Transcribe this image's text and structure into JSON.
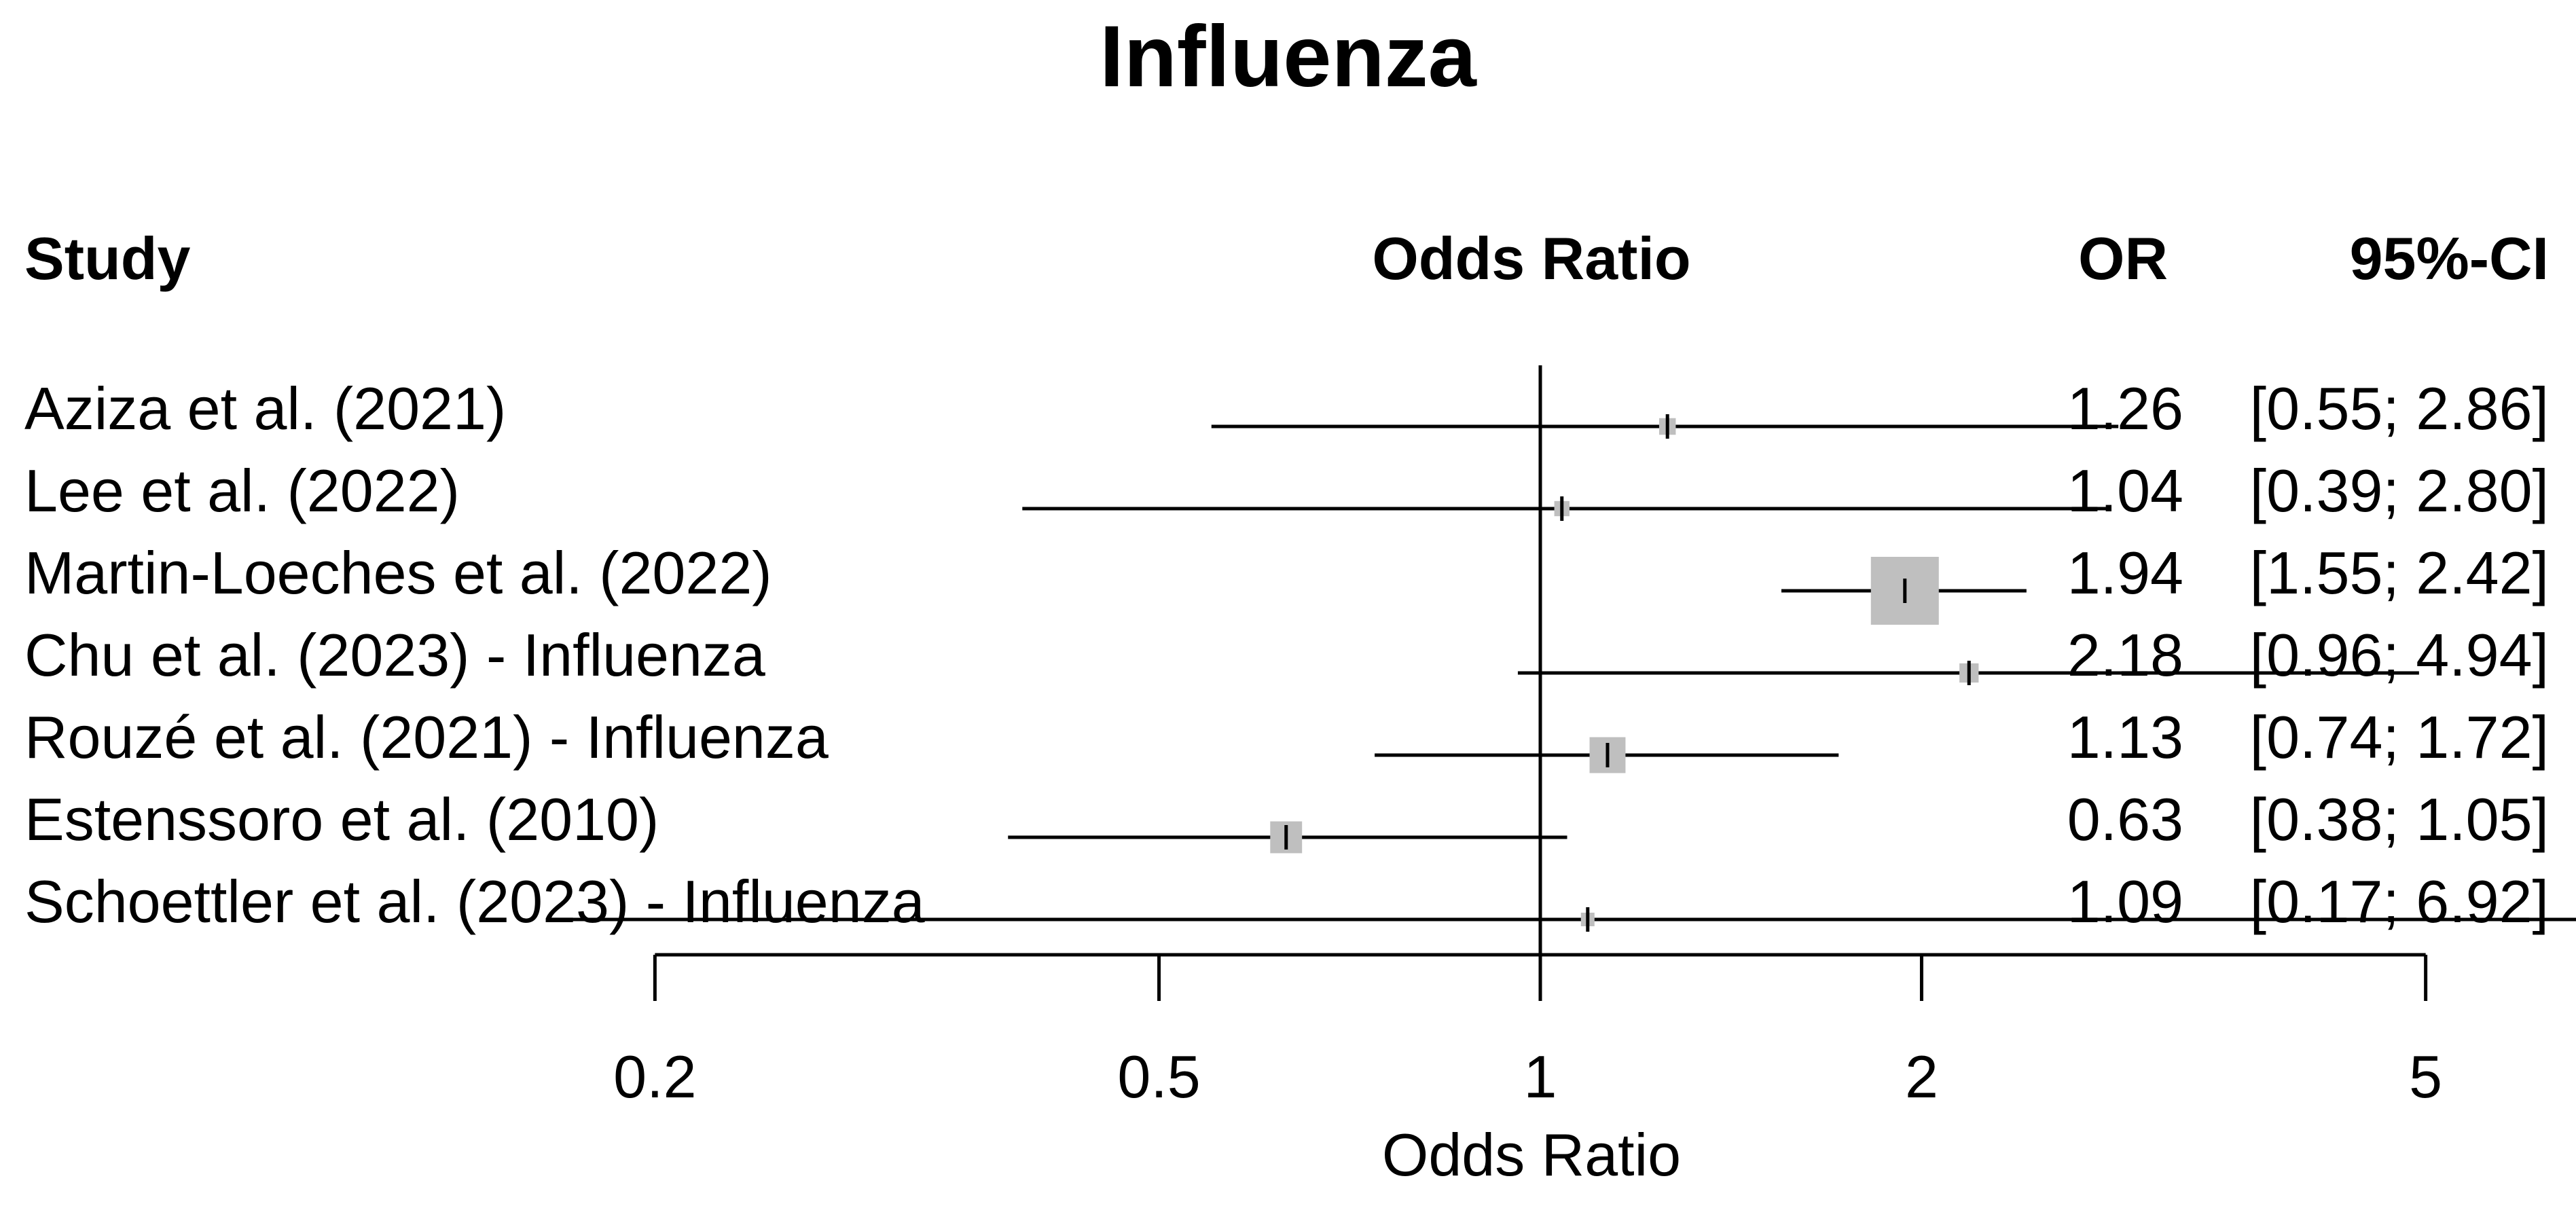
{
  "chart_data": {
    "type": "forest",
    "title": "Influenza",
    "column_headers": {
      "study": "Study",
      "plot": "Odds Ratio",
      "estimate": "OR",
      "ci": "95%-CI"
    },
    "xlabel": "Odds Ratio",
    "x_scale": "log",
    "xlim": [
      0.2,
      5
    ],
    "x_ticks": [
      {
        "value": 0.2,
        "label": "0.2"
      },
      {
        "value": 0.5,
        "label": "0.5"
      },
      {
        "value": 1,
        "label": "1"
      },
      {
        "value": 2,
        "label": "2"
      },
      {
        "value": 5,
        "label": "5"
      }
    ],
    "reference_line": 1,
    "studies": [
      {
        "study": "Aziza et al. (2021)",
        "or": 1.26,
        "lower": 0.55,
        "upper": 2.86,
        "or_text": "1.26",
        "ci_text": "[0.55; 2.86]",
        "weight": 0.6
      },
      {
        "study": "Lee et al. (2022)",
        "or": 1.04,
        "lower": 0.39,
        "upper": 2.8,
        "or_text": "1.04",
        "ci_text": "[0.39; 2.80]",
        "weight": 0.5
      },
      {
        "study": "Martin-Loeches et al. (2022)",
        "or": 1.94,
        "lower": 1.55,
        "upper": 2.42,
        "or_text": "1.94",
        "ci_text": "[1.55; 2.42]",
        "weight": 10
      },
      {
        "study": "Chu et al. (2023) - Influenza",
        "or": 2.18,
        "lower": 0.96,
        "upper": 4.94,
        "or_text": "2.18",
        "ci_text": "[0.96; 4.94]",
        "weight": 0.8
      },
      {
        "study": "Rouzé et al. (2021) - Influenza",
        "or": 1.13,
        "lower": 0.74,
        "upper": 1.72,
        "or_text": "1.13",
        "ci_text": "[0.74; 1.72]",
        "weight": 2.8
      },
      {
        "study": "Estenssoro et al. (2010)",
        "or": 0.63,
        "lower": 0.38,
        "upper": 1.05,
        "or_text": "0.63",
        "ci_text": "[0.38; 1.05]",
        "weight": 2.2
      },
      {
        "study": "Schoettler et al. (2023) - Influenza",
        "or": 1.09,
        "lower": 0.17,
        "upper": 6.92,
        "or_text": "1.09",
        "ci_text": "[0.17; 6.92]",
        "weight": 0.1
      }
    ],
    "colors": {
      "box": "#bfbfbf",
      "line": "#000000"
    }
  }
}
